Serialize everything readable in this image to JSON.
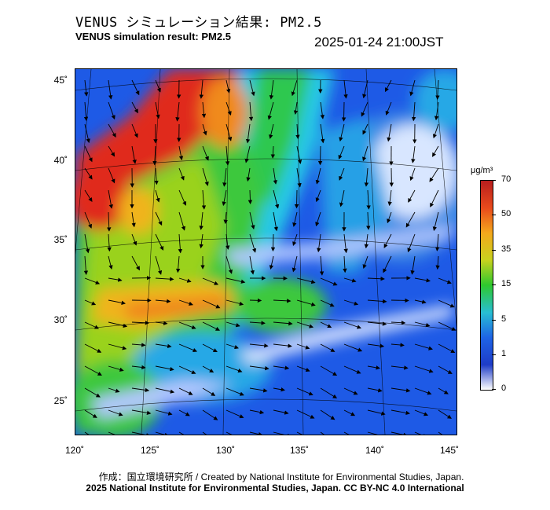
{
  "header": {
    "title_jp": "VENUS シミュレーション結果: PM2.5",
    "title_en": "VENUS simulation result: PM2.5",
    "timestamp": "2025-01-24 21:00JST"
  },
  "axes": {
    "lat_labels": [
      "45˚",
      "40˚",
      "35˚",
      "30˚",
      "25˚"
    ],
    "lon_labels": [
      "120˚",
      "125˚",
      "130˚",
      "135˚",
      "140˚",
      "145˚"
    ]
  },
  "colorbar": {
    "unit": "μg/m³",
    "ticks": [
      "70",
      "50",
      "35",
      "15",
      "5",
      "1",
      "0"
    ],
    "colors": [
      "#b81e1e",
      "#e84a1c",
      "#f4a81c",
      "#c8d21e",
      "#2ec82e",
      "#28bed2",
      "#1e64e6",
      "#1e3cc8",
      "#ffffff"
    ]
  },
  "map": {
    "region": "East Asia / Japan",
    "legend_palette": {
      "very_high": "#e02a1e",
      "high": "#f08a1e",
      "moderate": "#9ad21e",
      "low_moderate": "#3cc83c",
      "low": "#28a8e6",
      "very_low": "#1e50e6",
      "clean": "#e8f0ff"
    }
  },
  "footer": {
    "credit_line1": "作成：国立環境研究所 / Created by National Institute for Environmental Studies, Japan.",
    "credit_line2": "2025 National Institute for Environmental Studies, Japan. CC BY-NC 4.0 International"
  }
}
